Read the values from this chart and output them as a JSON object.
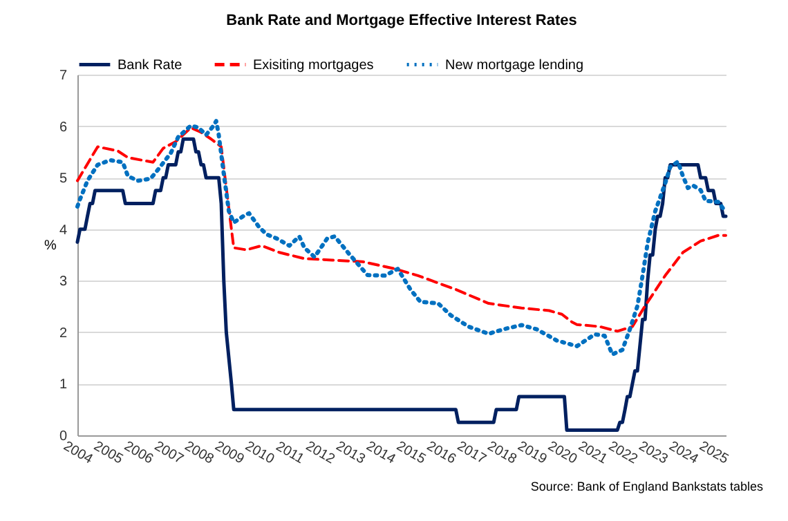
{
  "chart_data": {
    "type": "line",
    "title": "Bank Rate and Mortgage Effective Interest Rates",
    "ylabel": "%",
    "annotations": [
      "Source: Bank of England Bankstats tables"
    ],
    "xlim": [
      "2004-01",
      "2025-06"
    ],
    "xticks": [
      "2004",
      "2005",
      "2006",
      "2007",
      "2008",
      "2009",
      "2010",
      "2011",
      "2012",
      "2013",
      "2014",
      "2015",
      "2016",
      "2017",
      "2018",
      "2019",
      "2020",
      "2021",
      "2022",
      "2023",
      "2024",
      "2025"
    ],
    "ylim": [
      0,
      7
    ],
    "yticks": [
      0,
      1,
      2,
      3,
      4,
      5,
      6,
      7
    ],
    "grid": "y",
    "legend": "top",
    "series": [
      {
        "name": "Bank Rate",
        "color": "#002060",
        "line_style": "solid",
        "x": [
          "2004-01",
          "2004-02",
          "2004-04",
          "2004-05",
          "2004-06",
          "2004-07",
          "2004-08",
          "2005-07",
          "2005-08",
          "2006-07",
          "2006-08",
          "2006-10",
          "2006-11",
          "2006-12",
          "2007-01",
          "2007-04",
          "2007-05",
          "2007-06",
          "2007-07",
          "2007-11",
          "2007-12",
          "2008-01",
          "2008-02",
          "2008-03",
          "2008-04",
          "2008-09",
          "2008-10",
          "2008-11",
          "2008-12",
          "2009-01",
          "2009-02",
          "2009-03",
          "2016-07",
          "2016-08",
          "2017-10",
          "2017-11",
          "2018-07",
          "2018-08",
          "2020-02",
          "2020-03",
          "2021-11",
          "2021-12",
          "2022-01",
          "2022-02",
          "2022-03",
          "2022-04",
          "2022-05",
          "2022-06",
          "2022-07",
          "2022-08",
          "2022-09",
          "2022-10",
          "2022-11",
          "2022-12",
          "2023-01",
          "2023-02",
          "2023-03",
          "2023-04",
          "2023-05",
          "2023-06",
          "2023-07",
          "2023-08",
          "2024-07",
          "2024-08",
          "2024-10",
          "2024-11",
          "2025-01",
          "2025-02",
          "2025-04",
          "2025-05",
          "2025-06"
        ],
        "values": [
          3.75,
          4.0,
          4.0,
          4.25,
          4.5,
          4.5,
          4.75,
          4.75,
          4.5,
          4.5,
          4.75,
          4.75,
          5.0,
          5.0,
          5.25,
          5.25,
          5.5,
          5.5,
          5.75,
          5.75,
          5.5,
          5.5,
          5.25,
          5.25,
          5.0,
          5.0,
          4.5,
          3.0,
          2.0,
          1.5,
          1.0,
          0.5,
          0.5,
          0.25,
          0.25,
          0.5,
          0.5,
          0.75,
          0.75,
          0.1,
          0.1,
          0.25,
          0.25,
          0.5,
          0.75,
          0.75,
          1.0,
          1.25,
          1.25,
          1.75,
          2.25,
          2.25,
          3.0,
          3.5,
          3.5,
          4.0,
          4.25,
          4.25,
          4.5,
          5.0,
          5.0,
          5.25,
          5.25,
          5.0,
          5.0,
          4.75,
          4.75,
          4.5,
          4.5,
          4.25,
          4.25
        ]
      },
      {
        "name": "Exisiting mortgages",
        "color": "#ff0000",
        "line_style": "dashed",
        "x": [
          "2004-01",
          "2004-09",
          "2005-05",
          "2005-09",
          "2006-07",
          "2006-11",
          "2007-04",
          "2007-10",
          "2008-02",
          "2008-06",
          "2008-10",
          "2009-01",
          "2009-03",
          "2009-08",
          "2010-02",
          "2010-09",
          "2011-07",
          "2012-06",
          "2013-06",
          "2014-07",
          "2015-04",
          "2016-07",
          "2017-08",
          "2018-09",
          "2019-08",
          "2020-01",
          "2020-05",
          "2020-07",
          "2021-04",
          "2021-11",
          "2022-05",
          "2022-10",
          "2023-06",
          "2024-01",
          "2024-08",
          "2025-03",
          "2025-06"
        ],
        "values": [
          4.94,
          5.6,
          5.52,
          5.39,
          5.3,
          5.57,
          5.7,
          5.97,
          5.88,
          5.75,
          5.6,
          4.4,
          3.64,
          3.6,
          3.68,
          3.55,
          3.43,
          3.4,
          3.37,
          3.23,
          3.1,
          2.83,
          2.56,
          2.47,
          2.42,
          2.35,
          2.2,
          2.15,
          2.11,
          2.02,
          2.11,
          2.51,
          3.1,
          3.55,
          3.77,
          3.88,
          3.88
        ]
      },
      {
        "name": "New mortgage lending",
        "color": "#0070c0",
        "line_style": "dotted",
        "x": [
          "2004-01",
          "2004-02",
          "2004-05",
          "2004-09",
          "2005-02",
          "2005-07",
          "2005-09",
          "2006-01",
          "2006-06",
          "2006-09",
          "2007-02",
          "2007-05",
          "2007-10",
          "2008-01",
          "2008-04",
          "2008-07",
          "2008-08",
          "2008-09",
          "2008-11",
          "2009-01",
          "2009-03",
          "2009-07",
          "2009-09",
          "2010-01",
          "2010-04",
          "2010-08",
          "2011-01",
          "2011-05",
          "2011-07",
          "2011-11",
          "2012-04",
          "2012-07",
          "2013-01",
          "2013-08",
          "2014-03",
          "2014-08",
          "2015-01",
          "2015-05",
          "2015-12",
          "2016-05",
          "2016-12",
          "2017-08",
          "2018-02",
          "2018-09",
          "2019-03",
          "2019-11",
          "2020-07",
          "2021-02",
          "2021-06",
          "2021-09",
          "2022-01",
          "2022-04",
          "2022-07",
          "2022-09",
          "2022-11",
          "2023-02",
          "2023-06",
          "2023-08",
          "2023-11",
          "2024-01",
          "2024-03",
          "2024-05",
          "2024-08",
          "2024-10",
          "2025-03",
          "2025-05"
        ],
        "values": [
          4.44,
          4.58,
          4.94,
          5.25,
          5.34,
          5.3,
          5.03,
          4.94,
          4.98,
          5.16,
          5.48,
          5.79,
          6.01,
          5.97,
          5.83,
          6.01,
          6.1,
          5.83,
          5.07,
          4.35,
          4.13,
          4.26,
          4.31,
          4.04,
          3.9,
          3.82,
          3.68,
          3.86,
          3.64,
          3.46,
          3.82,
          3.86,
          3.5,
          3.11,
          3.1,
          3.23,
          2.83,
          2.59,
          2.56,
          2.33,
          2.11,
          1.97,
          2.06,
          2.14,
          2.06,
          1.84,
          1.73,
          1.96,
          1.93,
          1.57,
          1.66,
          2.06,
          2.51,
          3.1,
          3.73,
          4.35,
          4.89,
          5.21,
          5.31,
          5.03,
          4.8,
          4.85,
          4.76,
          4.55,
          4.53,
          4.4
        ]
      }
    ]
  }
}
